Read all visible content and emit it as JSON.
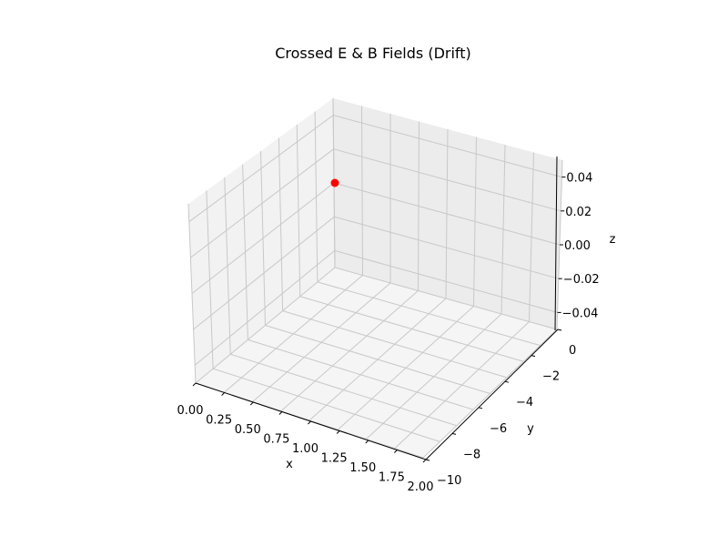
{
  "chart_data": {
    "type": "scatter",
    "projection": "3d",
    "title": "Crossed E & B Fields (Drift)",
    "xlabel": "x",
    "ylabel": "y",
    "zlabel": "z",
    "xlim": [
      0.0,
      2.0
    ],
    "ylim": [
      -10,
      0
    ],
    "zlim": [
      -0.05,
      0.05
    ],
    "xticks": [
      "0.00",
      "0.25",
      "0.50",
      "0.75",
      "1.00",
      "1.25",
      "1.50",
      "1.75",
      "2.00"
    ],
    "yticks": [
      "0",
      "−2",
      "−4",
      "−6",
      "−8",
      "−10"
    ],
    "zticks": [
      "0.04",
      "0.02",
      "0.00",
      "−0.02",
      "−0.04"
    ],
    "grid": true,
    "points": [
      {
        "x": 0.0,
        "y": 0.0,
        "z": 0.0,
        "color": "#ff0000"
      }
    ]
  },
  "colors": {
    "pane_left": "#f2f2f2",
    "pane_right": "#ececec",
    "pane_floor": "#f5f5f5",
    "grid": "#c8c8c8",
    "marker": "#ff0000"
  }
}
